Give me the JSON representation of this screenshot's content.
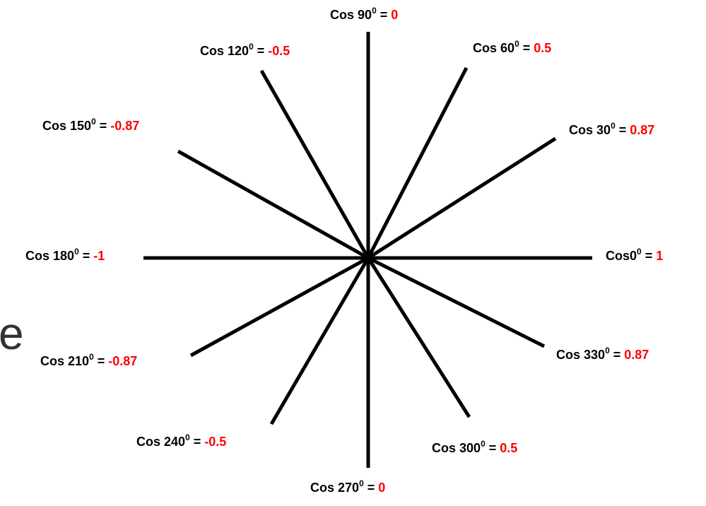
{
  "colors": {
    "line": "#000000",
    "text": "#000000",
    "value": "#ff0000"
  },
  "edge_glyph": "e",
  "labels": [
    {
      "name": "cos-0",
      "func": "Cos",
      "sep": "",
      "angle": "0",
      "degree": "0",
      "equals": " = ",
      "value": "1"
    },
    {
      "name": "cos-30",
      "func": "Cos",
      "sep": " ",
      "angle": "30",
      "degree": "0",
      "equals": " = ",
      "value": "0.87"
    },
    {
      "name": "cos-60",
      "func": "Cos",
      "sep": " ",
      "angle": "60",
      "degree": "0",
      "equals": " = ",
      "value": "0.5"
    },
    {
      "name": "cos-90",
      "func": "Cos",
      "sep": " ",
      "angle": "90",
      "degree": "0",
      "equals": " = ",
      "value": "0"
    },
    {
      "name": "cos-120",
      "func": "Cos",
      "sep": " ",
      "angle": "120",
      "degree": "0",
      "equals": " = ",
      "value": "-0.5"
    },
    {
      "name": "cos-150",
      "func": "Cos",
      "sep": " ",
      "angle": "150",
      "degree": "0",
      "equals": " = ",
      "value": "-0.87"
    },
    {
      "name": "cos-180",
      "func": "Cos",
      "sep": " ",
      "angle": "180",
      "degree": "0",
      "equals": " = ",
      "value": "-1"
    },
    {
      "name": "cos-210",
      "func": "Cos",
      "sep": " ",
      "angle": "210",
      "degree": "0",
      "equals": " = ",
      "value": "-0.87"
    },
    {
      "name": "cos-240",
      "func": "Cos",
      "sep": " ",
      "angle": "240",
      "degree": "0",
      "equals": " = ",
      "value": "-0.5"
    },
    {
      "name": "cos-270",
      "func": "Cos",
      "sep": " ",
      "angle": "270",
      "degree": "0",
      "equals": " = ",
      "value": "0"
    },
    {
      "name": "cos-300",
      "func": "Cos",
      "sep": " ",
      "angle": "300",
      "degree": "0",
      "equals": " = ",
      "value": "0.5"
    },
    {
      "name": "cos-330",
      "func": "Cos",
      "sep": " ",
      "angle": "330",
      "degree": "0",
      "equals": " = ",
      "value": "0.87"
    }
  ]
}
